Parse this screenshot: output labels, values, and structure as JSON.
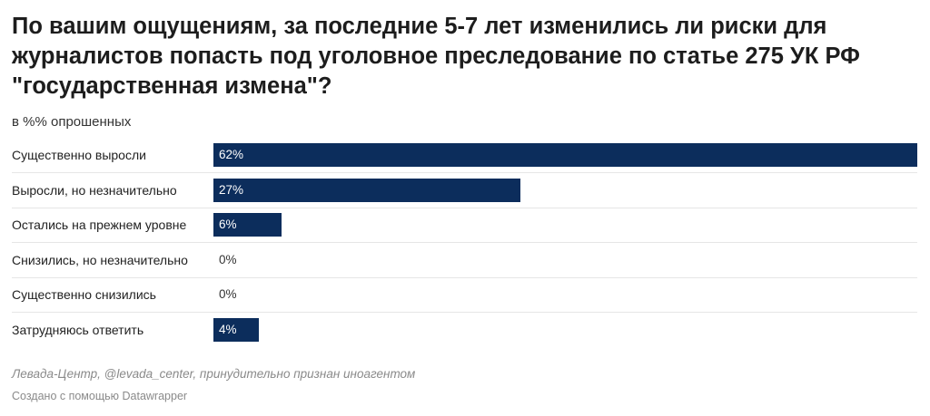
{
  "chart_data": {
    "type": "bar",
    "orientation": "horizontal",
    "title": "По вашим ощущениям, за последние 5-7 лет изменились ли риски для журналистов попасть под уголовное преследование по статье 275 УК РФ \"государственная измена\"?",
    "subtitle": "в %% опрошенных",
    "categories": [
      "Существенно выросли",
      "Выросли, но незначительно",
      "Остались на прежнем уровне",
      "Снизились, но незначительно",
      "Существенно снизились",
      "Затрудняюсь ответить"
    ],
    "values": [
      62,
      27,
      6,
      0,
      0,
      4
    ],
    "value_labels": [
      "62%",
      "27%",
      "6%",
      "0%",
      "0%",
      "4%"
    ],
    "xlim": [
      0,
      62
    ],
    "bar_color": "#0c2d5c",
    "grid": false,
    "legend": "none"
  },
  "footer": {
    "source": "Левада-Центр, @levada_center, принудительно признан иноагентом",
    "credit": "Создано с помощью Datawrapper"
  }
}
